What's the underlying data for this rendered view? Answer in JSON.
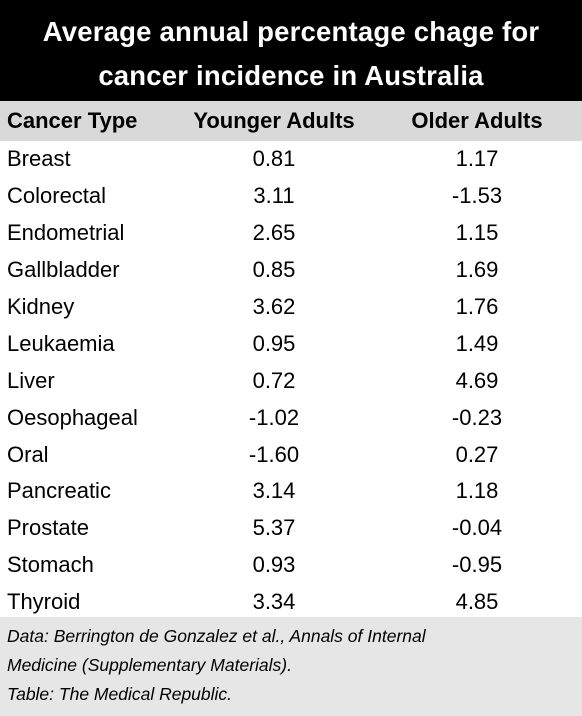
{
  "chart_data": {
    "type": "table",
    "title_lines": [
      "Average annual percentage chage for",
      "cancer incidence in Australia"
    ],
    "columns": [
      "Cancer Type",
      "Younger Adults",
      "Older Adults"
    ],
    "rows": [
      [
        "Breast",
        "0.81",
        "1.17"
      ],
      [
        "Colorectal",
        "3.11",
        "-1.53"
      ],
      [
        "Endometrial",
        "2.65",
        "1.15"
      ],
      [
        "Gallbladder",
        "0.85",
        "1.69"
      ],
      [
        "Kidney",
        "3.62",
        "1.76"
      ],
      [
        "Leukaemia",
        "0.95",
        "1.49"
      ],
      [
        "Liver",
        "0.72",
        "4.69"
      ],
      [
        "Oesophageal",
        "-1.02",
        "-0.23"
      ],
      [
        "Oral",
        "-1.60",
        "0.27"
      ],
      [
        "Pancreatic",
        "3.14",
        "1.18"
      ],
      [
        "Prostate",
        "5.37",
        "-0.04"
      ],
      [
        "Stomach",
        "0.93",
        "-0.95"
      ],
      [
        "Thyroid",
        "3.34",
        "4.85"
      ]
    ],
    "footnote_lines": [
      "Data: Berrington de Gonzalez et al., Annals of Internal",
      "Medicine (Supplementary Materials).",
      "Table: The Medical Republic."
    ]
  },
  "colors": {
    "title_bg": "#000000",
    "title_text": "#ffffff",
    "header_bg": "#d9d9d9",
    "footer_bg": "#e6e6e6"
  }
}
